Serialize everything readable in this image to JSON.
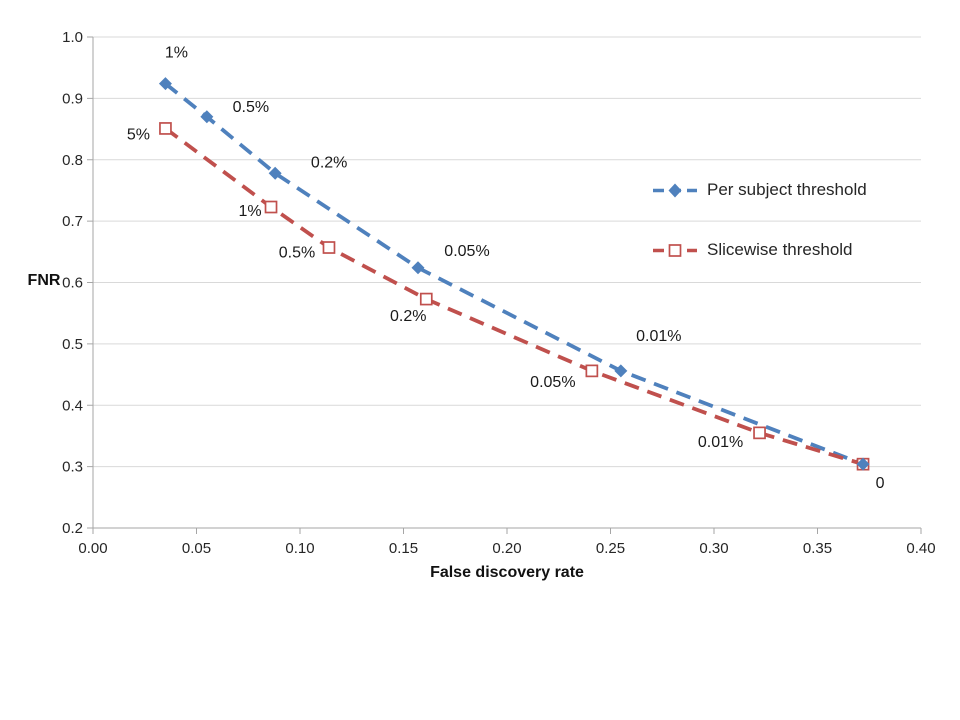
{
  "chart_data": {
    "type": "line",
    "title": "",
    "xlabel": "False discovery rate",
    "ylabel": "FNR",
    "xlim": [
      0.0,
      0.4
    ],
    "ylim": [
      0.2,
      1.0
    ],
    "x_ticks": [
      "0.00",
      "0.05",
      "0.10",
      "0.15",
      "0.20",
      "0.25",
      "0.30",
      "0.35",
      "0.40"
    ],
    "y_ticks": [
      "0.2",
      "0.3",
      "0.4",
      "0.5",
      "0.6",
      "0.7",
      "0.8",
      "0.9",
      "1.0"
    ],
    "grid": "horizontal-only",
    "legend_position": "inside-right",
    "line_style": "dashed",
    "colors": {
      "grid": "#d9d9d9",
      "axis": "#a6a6a6",
      "tick_text": "#262626",
      "label_text": "#1a1a1a"
    },
    "series": [
      {
        "name": "Per subject threshold",
        "color": "#4f81bd",
        "marker": "filled-diamond",
        "points": [
          {
            "x": 0.035,
            "y": 0.924,
            "label": "1%",
            "ldx": 11,
            "ldy": -32
          },
          {
            "x": 0.055,
            "y": 0.87,
            "label": "0.5%",
            "ldx": 44,
            "ldy": -11
          },
          {
            "x": 0.088,
            "y": 0.778,
            "label": "0.2%",
            "ldx": 54,
            "ldy": -12
          },
          {
            "x": 0.157,
            "y": 0.624,
            "label": "0.05%",
            "ldx": 49,
            "ldy": -18
          },
          {
            "x": 0.255,
            "y": 0.456,
            "label": "0.01%",
            "ldx": 38,
            "ldy": -36
          },
          {
            "x": 0.372,
            "y": 0.304,
            "label": "0",
            "ldx": 17,
            "ldy": 18
          }
        ]
      },
      {
        "name": "Slicewise threshold",
        "color": "#c0504d",
        "marker": "open-square",
        "points": [
          {
            "x": 0.035,
            "y": 0.851,
            "label": "5%",
            "ldx": -27,
            "ldy": 5
          },
          {
            "x": 0.086,
            "y": 0.723,
            "label": "1%",
            "ldx": -21,
            "ldy": 3
          },
          {
            "x": 0.114,
            "y": 0.657,
            "label": "0.5%",
            "ldx": -32,
            "ldy": 4
          },
          {
            "x": 0.161,
            "y": 0.573,
            "label": "0.2%",
            "ldx": -18,
            "ldy": 16
          },
          {
            "x": 0.241,
            "y": 0.456,
            "label": "0.05%",
            "ldx": -39,
            "ldy": 10
          },
          {
            "x": 0.322,
            "y": 0.355,
            "label": "0.01%",
            "ldx": -39,
            "ldy": 8
          },
          {
            "x": 0.372,
            "y": 0.304,
            "label": "",
            "ldx": 0,
            "ldy": 0
          }
        ]
      }
    ]
  }
}
